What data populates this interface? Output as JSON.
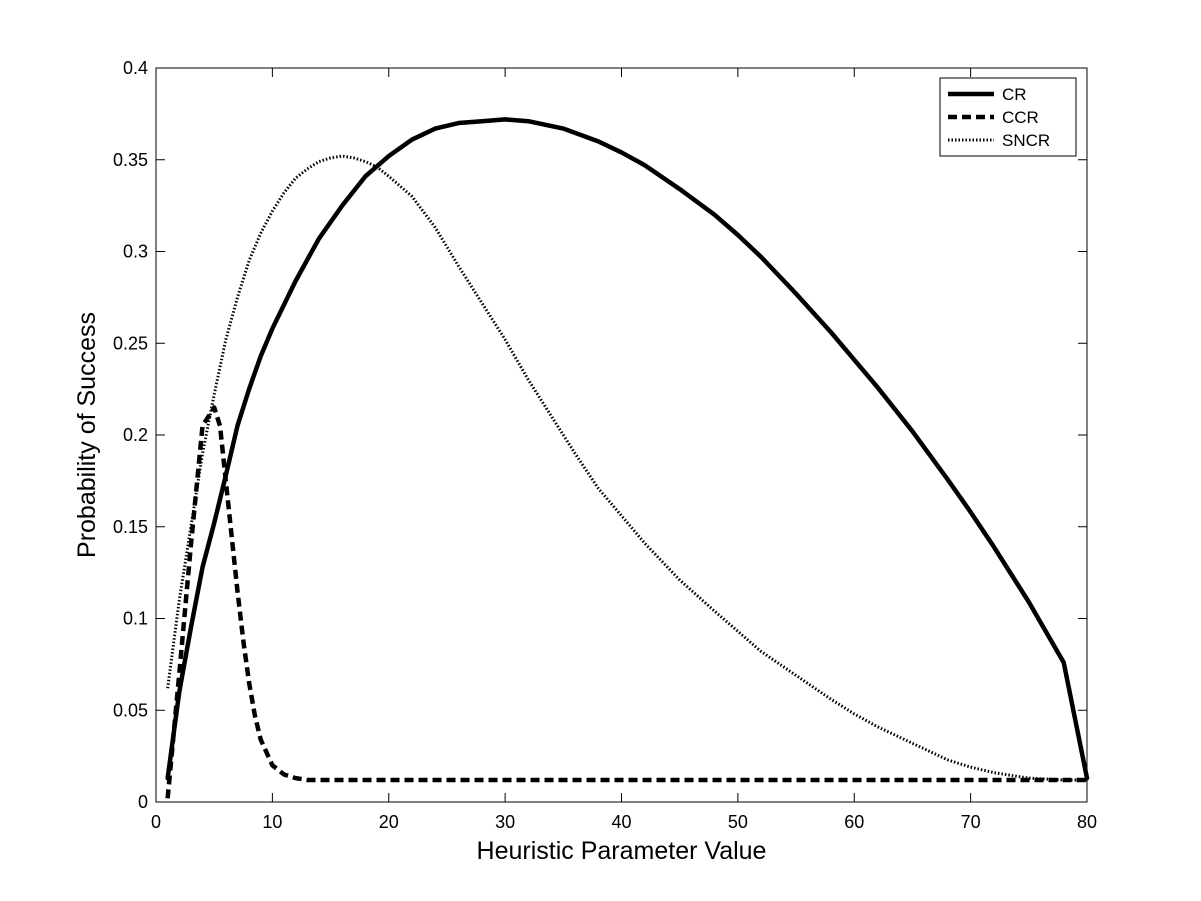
{
  "chart_data": {
    "type": "line",
    "title": "",
    "xlabel": "Heuristic Parameter Value",
    "ylabel": "Probability of Success",
    "xlim": [
      0,
      80
    ],
    "ylim": [
      0,
      0.4
    ],
    "xticks": [
      0,
      10,
      20,
      30,
      40,
      50,
      60,
      70,
      80
    ],
    "yticks": [
      0,
      0.05,
      0.1,
      0.15,
      0.2,
      0.25,
      0.3,
      0.35,
      0.4
    ],
    "xtick_labels": [
      "0",
      "10",
      "20",
      "30",
      "40",
      "50",
      "60",
      "70",
      "80"
    ],
    "ytick_labels": [
      "0",
      "0.05",
      "0.1",
      "0.15",
      "0.2",
      "0.25",
      "0.3",
      "0.35",
      "0.4"
    ],
    "grid": false,
    "legend_position": "top-right",
    "series": [
      {
        "name": "CR",
        "style": "solid",
        "color": "#000000",
        "x": [
          1,
          2,
          3,
          4,
          5,
          6,
          7,
          8,
          9,
          10,
          12,
          14,
          16,
          18,
          20,
          22,
          24,
          26,
          28,
          30,
          32,
          35,
          38,
          40,
          42,
          45,
          48,
          50,
          52,
          55,
          58,
          60,
          62,
          65,
          68,
          70,
          72,
          75,
          78,
          80
        ],
        "y": [
          0.013,
          0.06,
          0.095,
          0.128,
          0.152,
          0.178,
          0.205,
          0.225,
          0.243,
          0.258,
          0.284,
          0.307,
          0.325,
          0.341,
          0.352,
          0.361,
          0.367,
          0.37,
          0.371,
          0.372,
          0.371,
          0.367,
          0.36,
          0.354,
          0.347,
          0.334,
          0.32,
          0.309,
          0.297,
          0.277,
          0.256,
          0.241,
          0.226,
          0.202,
          0.176,
          0.158,
          0.139,
          0.109,
          0.076,
          0.013
        ]
      },
      {
        "name": "CCR",
        "style": "dashed",
        "color": "#000000",
        "x": [
          1,
          2,
          3,
          4,
          5,
          5.5,
          6,
          6.5,
          7,
          7.5,
          8,
          8.5,
          9,
          10,
          11,
          12,
          13,
          15,
          20,
          30,
          40,
          50,
          60,
          70,
          80
        ],
        "y": [
          0.002,
          0.07,
          0.14,
          0.205,
          0.215,
          0.205,
          0.175,
          0.145,
          0.115,
          0.088,
          0.065,
          0.047,
          0.034,
          0.02,
          0.015,
          0.013,
          0.012,
          0.012,
          0.012,
          0.012,
          0.012,
          0.012,
          0.012,
          0.012,
          0.012
        ]
      },
      {
        "name": "SNCR",
        "style": "dotted",
        "color": "#000000",
        "x": [
          1,
          2,
          3,
          4,
          5,
          6,
          7,
          8,
          9,
          10,
          11,
          12,
          13,
          14,
          15,
          16,
          17,
          18,
          19,
          20,
          22,
          24,
          26,
          28,
          30,
          32,
          34,
          36,
          38,
          40,
          42,
          45,
          48,
          50,
          52,
          55,
          58,
          60,
          62,
          65,
          68,
          70,
          72,
          75,
          78,
          80
        ],
        "y": [
          0.062,
          0.11,
          0.15,
          0.19,
          0.222,
          0.252,
          0.275,
          0.295,
          0.31,
          0.322,
          0.332,
          0.34,
          0.345,
          0.349,
          0.351,
          0.352,
          0.351,
          0.349,
          0.346,
          0.341,
          0.33,
          0.313,
          0.292,
          0.272,
          0.252,
          0.23,
          0.21,
          0.19,
          0.171,
          0.156,
          0.141,
          0.121,
          0.104,
          0.093,
          0.082,
          0.069,
          0.056,
          0.048,
          0.041,
          0.032,
          0.023,
          0.019,
          0.016,
          0.013,
          0.012,
          0.012
        ]
      }
    ]
  }
}
